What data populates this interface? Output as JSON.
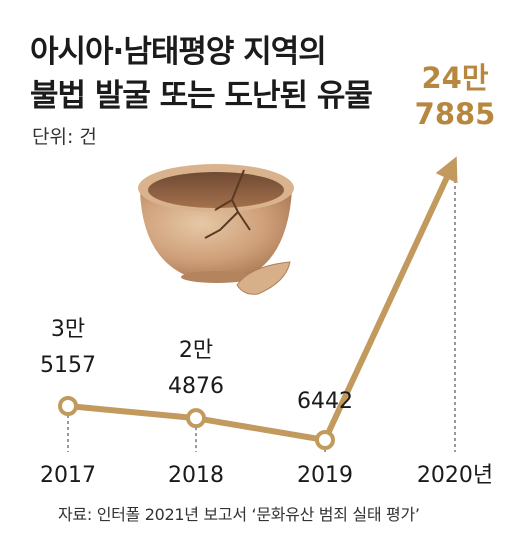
{
  "header": {
    "title_line1": "아시아·남태평양 지역의",
    "title_line2": "불법 발굴 또는 도난된 유물",
    "unit": "단위: 건"
  },
  "source": "자료: 인터폴 2021년 보고서 ‘문화유산 범죄 실태 평가’",
  "colors": {
    "line": "#c29a5e",
    "marker_fill": "#ffffff",
    "highlight_text": "#b8873f",
    "text": "#1a1a1a",
    "dash": "#555555"
  },
  "chart_data": {
    "type": "line",
    "categories": [
      "2017",
      "2018",
      "2019",
      "2020년"
    ],
    "values": [
      35157,
      24876,
      6442,
      247885
    ],
    "data_labels": [
      [
        "3만",
        "5157"
      ],
      [
        "2만",
        "4876"
      ],
      [
        "6442"
      ],
      [
        "24만",
        "7885"
      ]
    ],
    "title": "아시아·남태평양 지역의 불법 발굴 또는 도난된 유물",
    "ylabel": "단위: 건",
    "xlabel": "",
    "grid": false,
    "legend": "none",
    "last_point_arrow": true
  }
}
